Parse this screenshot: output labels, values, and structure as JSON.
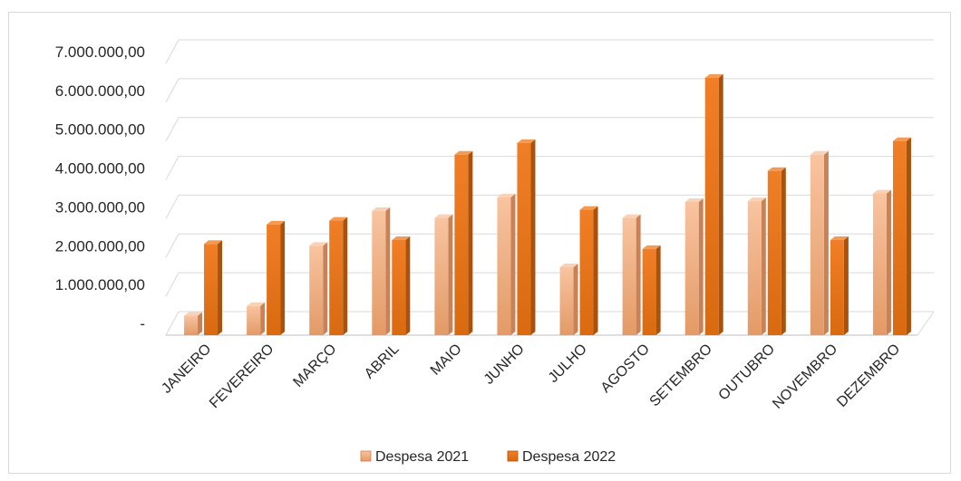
{
  "chart_data": {
    "type": "bar",
    "title": "",
    "xlabel": "",
    "ylabel": "",
    "categories": [
      "JANEIRO",
      "FEVEREIRO",
      "MARÇO",
      "ABRIL",
      "MAIO",
      "JUNHO",
      "JULHO",
      "AGOSTO",
      "SETEMBRO",
      "OUTUBRO",
      "NOVEMBRO",
      "DEZEMBRO"
    ],
    "series": [
      {
        "name": "Despesa 2021",
        "values": [
          500000,
          750000,
          2300000,
          3200000,
          3020000,
          3550000,
          1750000,
          3020000,
          3430000,
          3450000,
          4650000,
          3650000
        ],
        "color": "#f4b183"
      },
      {
        "name": "Despesa 2022",
        "values": [
          2350000,
          2850000,
          2950000,
          2450000,
          4650000,
          4950000,
          3230000,
          2220000,
          6630000,
          4230000,
          2450000,
          5000000
        ],
        "color": "#e87722"
      }
    ],
    "ylim": [
      0,
      7000000
    ],
    "yticks": [
      0,
      1000000,
      2000000,
      3000000,
      4000000,
      5000000,
      6000000,
      7000000
    ],
    "ytick_labels": [
      "-",
      "1.000.000,00",
      "2.000.000,00",
      "3.000.000,00",
      "4.000.000,00",
      "5.000.000,00",
      "6.000.000,00",
      "7.000.000,00"
    ],
    "grid": true,
    "legend_position": "bottom"
  }
}
